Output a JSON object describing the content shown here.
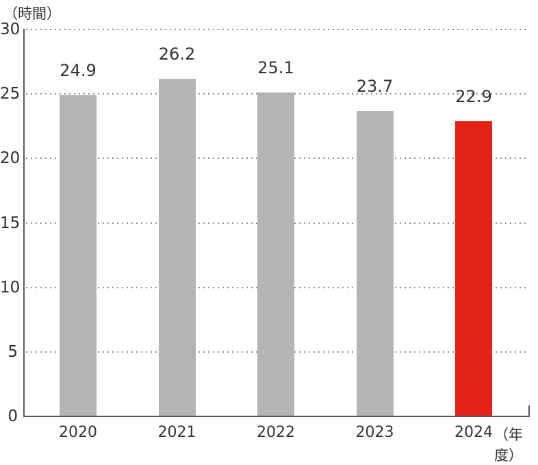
{
  "chart_data": {
    "type": "bar",
    "title": "",
    "categories": [
      "2020",
      "2021",
      "2022",
      "2023",
      "2024"
    ],
    "values": [
      24.9,
      26.2,
      25.1,
      23.7,
      22.9
    ],
    "value_labels": [
      "24.9",
      "26.2",
      "25.1",
      "23.7",
      "22.9"
    ],
    "y_axis_unit_label": "（時間）",
    "x_axis_unit_label": "（年度）",
    "ylim": [
      0,
      30
    ],
    "ytick_step": 5,
    "ytick_labels": [
      "0",
      "5",
      "10",
      "15",
      "20",
      "25",
      "30"
    ],
    "grid": "dotted-horizontal",
    "legend": "none",
    "highlight_index": 4,
    "colors": {
      "bar_default": "#b4b4b4",
      "bar_highlight": "#e32119",
      "axis": "#595959",
      "grid_dots": "#8c8c8c",
      "text": "#333333"
    }
  }
}
